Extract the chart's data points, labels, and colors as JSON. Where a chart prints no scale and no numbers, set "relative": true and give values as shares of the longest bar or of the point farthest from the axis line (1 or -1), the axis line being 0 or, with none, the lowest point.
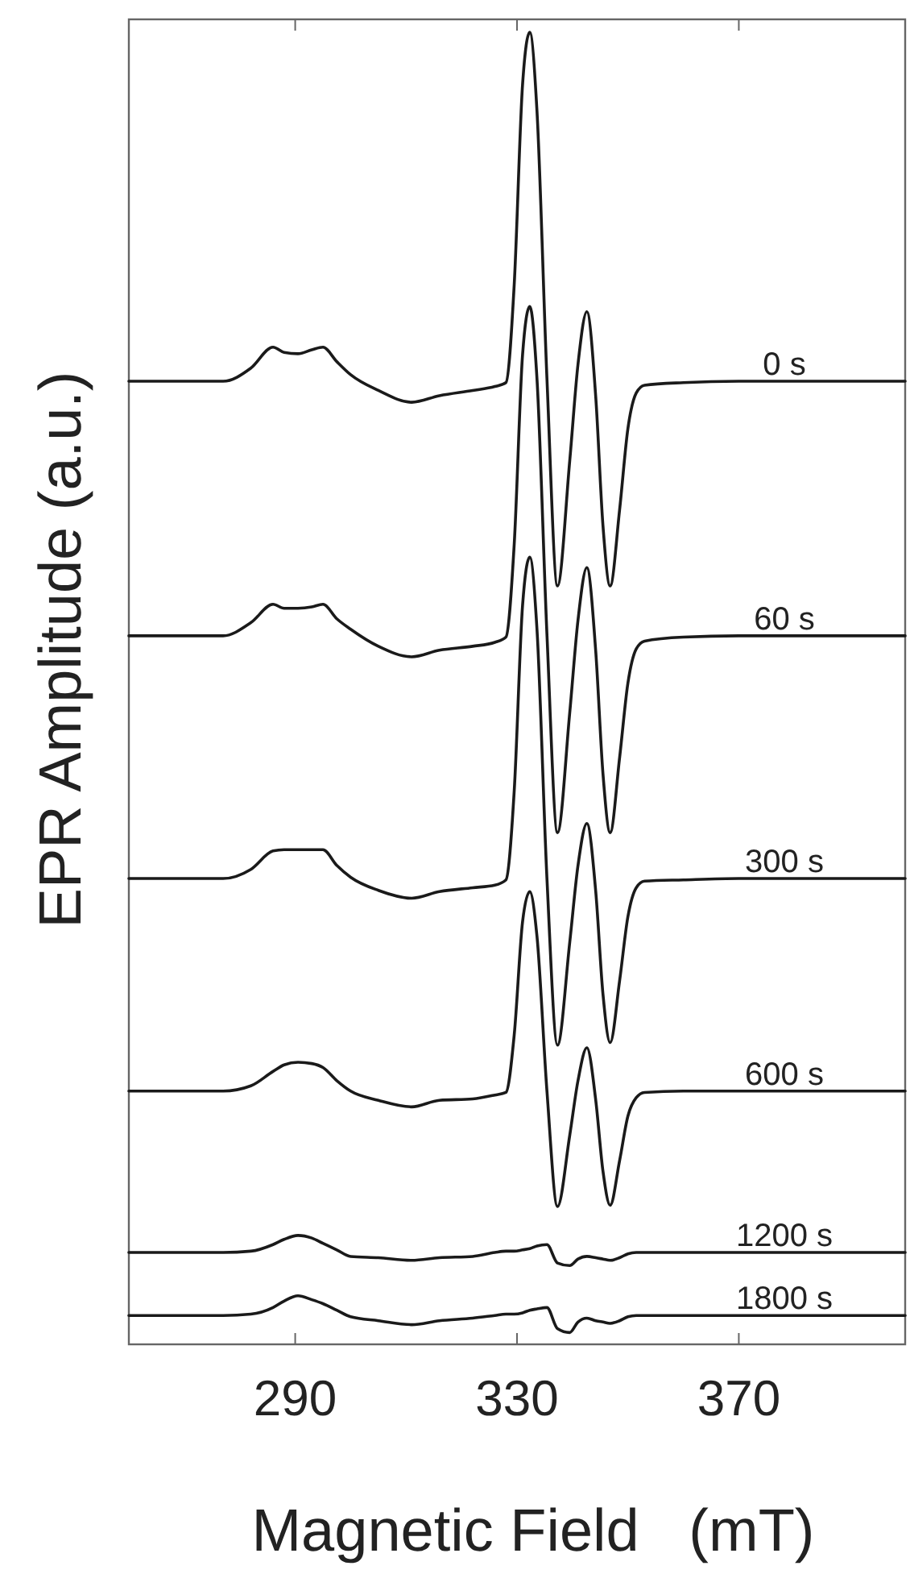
{
  "chart_data": {
    "type": "line",
    "relative": true,
    "xlabel": "Magnetic Field   (mT)",
    "ylabel": "EPR Amplitude (a.u.)",
    "xlim": [
      260,
      400
    ],
    "xticks": [
      290,
      330,
      370
    ],
    "x": [
      260,
      270,
      277,
      282,
      286,
      288,
      290.5,
      293,
      295,
      297.5,
      300,
      305,
      311,
      316,
      322,
      326,
      328,
      329.5,
      331,
      332.3,
      333.6,
      335.4,
      337.3,
      339.5,
      341,
      342.6,
      344.2,
      345.5,
      346.8,
      348.5,
      350,
      351.5,
      353,
      360,
      370,
      380,
      390,
      400
    ],
    "series": [
      {
        "name": "0 s",
        "color": "#1a1a1a",
        "values": [
          0.734,
          0.734,
          0.734,
          0.744,
          0.76,
          0.756,
          0.755,
          0.758,
          0.76,
          0.749,
          0.739,
          0.727,
          0.718,
          0.723,
          0.727,
          0.73,
          0.733,
          0.808,
          0.96,
          1.0,
          0.94,
          0.736,
          0.578,
          0.673,
          0.747,
          0.787,
          0.722,
          0.624,
          0.578,
          0.636,
          0.698,
          0.725,
          0.731,
          0.733,
          0.734,
          0.734,
          0.734,
          0.734
        ]
      },
      {
        "name": "60 s",
        "color": "#1a1a1a",
        "values": [
          0.54,
          0.54,
          0.54,
          0.55,
          0.564,
          0.561,
          0.561,
          0.562,
          0.564,
          0.553,
          0.545,
          0.532,
          0.524,
          0.529,
          0.532,
          0.535,
          0.539,
          0.61,
          0.754,
          0.791,
          0.736,
          0.541,
          0.39,
          0.481,
          0.552,
          0.592,
          0.528,
          0.435,
          0.39,
          0.447,
          0.504,
          0.53,
          0.536,
          0.539,
          0.54,
          0.54,
          0.54,
          0.54
        ]
      },
      {
        "name": "300 s",
        "color": "#1a1a1a",
        "values": [
          0.355,
          0.355,
          0.355,
          0.362,
          0.376,
          0.377,
          0.377,
          0.377,
          0.377,
          0.365,
          0.356,
          0.346,
          0.34,
          0.345,
          0.348,
          0.35,
          0.354,
          0.422,
          0.563,
          0.6,
          0.545,
          0.355,
          0.228,
          0.306,
          0.365,
          0.397,
          0.345,
          0.267,
          0.23,
          0.277,
          0.326,
          0.348,
          0.353,
          0.354,
          0.355,
          0.355,
          0.355,
          0.355
        ]
      },
      {
        "name": "600 s",
        "color": "#1a1a1a",
        "values": [
          0.193,
          0.193,
          0.193,
          0.197,
          0.208,
          0.213,
          0.215,
          0.214,
          0.211,
          0.201,
          0.193,
          0.186,
          0.181,
          0.186,
          0.187,
          0.19,
          0.192,
          0.236,
          0.322,
          0.345,
          0.311,
          0.193,
          0.105,
          0.159,
          0.201,
          0.226,
          0.186,
          0.132,
          0.106,
          0.14,
          0.174,
          0.188,
          0.192,
          0.193,
          0.193,
          0.193,
          0.193,
          0.193
        ]
      },
      {
        "name": "1200 s",
        "color": "#1a1a1a",
        "values": [
          0.07,
          0.07,
          0.07,
          0.071,
          0.076,
          0.08,
          0.083,
          0.081,
          0.077,
          0.072,
          0.067,
          0.066,
          0.064,
          0.066,
          0.067,
          0.07,
          0.071,
          0.071,
          0.072,
          0.073,
          0.075,
          0.076,
          0.062,
          0.06,
          0.065,
          0.067,
          0.066,
          0.065,
          0.064,
          0.066,
          0.069,
          0.07,
          0.07,
          0.07,
          0.07,
          0.07,
          0.07,
          0.07
        ]
      },
      {
        "name": "1800 s",
        "color": "#1a1a1a",
        "values": [
          0.022,
          0.022,
          0.022,
          0.023,
          0.028,
          0.033,
          0.037,
          0.034,
          0.031,
          0.026,
          0.021,
          0.018,
          0.015,
          0.018,
          0.02,
          0.022,
          0.023,
          0.023,
          0.024,
          0.026,
          0.027,
          0.028,
          0.012,
          0.009,
          0.017,
          0.02,
          0.018,
          0.017,
          0.016,
          0.018,
          0.021,
          0.022,
          0.022,
          0.022,
          0.022,
          0.022,
          0.022,
          0.022
        ]
      }
    ]
  }
}
